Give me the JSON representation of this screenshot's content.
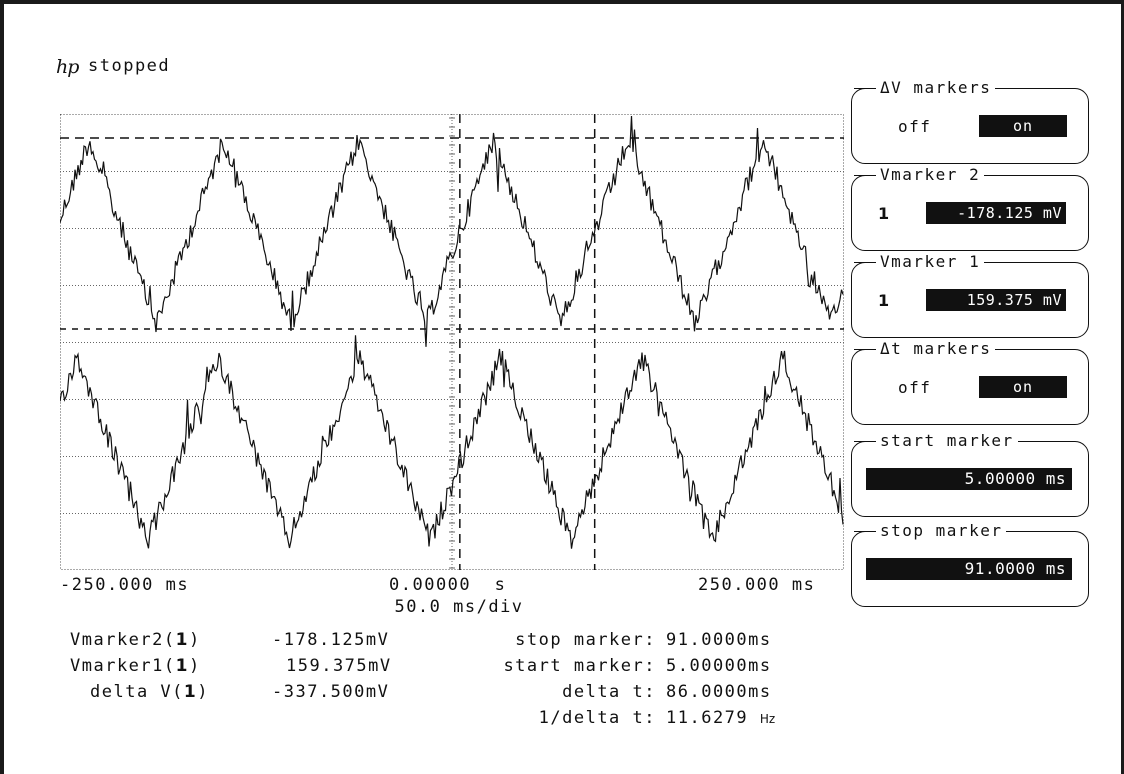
{
  "header": {
    "logo_text": "hp",
    "status": "stopped"
  },
  "display": {
    "x_axis": {
      "left": "-250.000 ms",
      "center": "0.00000  s",
      "right": "250.000 ms"
    },
    "timebase": "50.0 ms/div"
  },
  "softkeys": {
    "delta_v_markers": {
      "title": "ΔV markers",
      "off": "off",
      "on": "on",
      "selected": "on"
    },
    "vmarker2": {
      "title": "Vmarker 2",
      "channel": "1",
      "value": "-178.125 mV"
    },
    "vmarker1": {
      "title": "Vmarker 1",
      "channel": "1",
      "value": "159.375 mV"
    },
    "delta_t_markers": {
      "title": "Δt markers",
      "off": "off",
      "on": "on",
      "selected": "on"
    },
    "start_marker": {
      "title": "start marker",
      "value": "5.00000 ms"
    },
    "stop_marker": {
      "title": "stop marker",
      "value": "91.0000 ms"
    }
  },
  "readout": {
    "vmarker2": {
      "prefix": "Vmarker2(",
      "channel": "1",
      "suffix": ")",
      "value": "-178.125mV"
    },
    "vmarker1": {
      "prefix": "Vmarker1(",
      "channel": "1",
      "suffix": ")",
      "value": "159.375mV"
    },
    "delta_v": {
      "prefix": "delta V(",
      "channel": "1",
      "suffix": ")",
      "value": "-337.500mV"
    },
    "stop_marker": {
      "label": "stop marker:",
      "value": "91.0000ms"
    },
    "start_marker": {
      "label": "start marker:",
      "value": "5.00000ms"
    },
    "delta_t": {
      "label": "delta t:",
      "value": "86.0000ms"
    },
    "inv_delta_t": {
      "label": "1/delta t:",
      "value": "11.6279",
      "unit": "Hz"
    }
  },
  "trace": {
    "time_range_ms": [
      -250,
      250
    ],
    "channel1_period_ms": 86,
    "vmarker2_level_mV": -178.125,
    "vmarker1_level_mV": 159.375,
    "start_marker_ms": 5,
    "stop_marker_ms": 91
  }
}
